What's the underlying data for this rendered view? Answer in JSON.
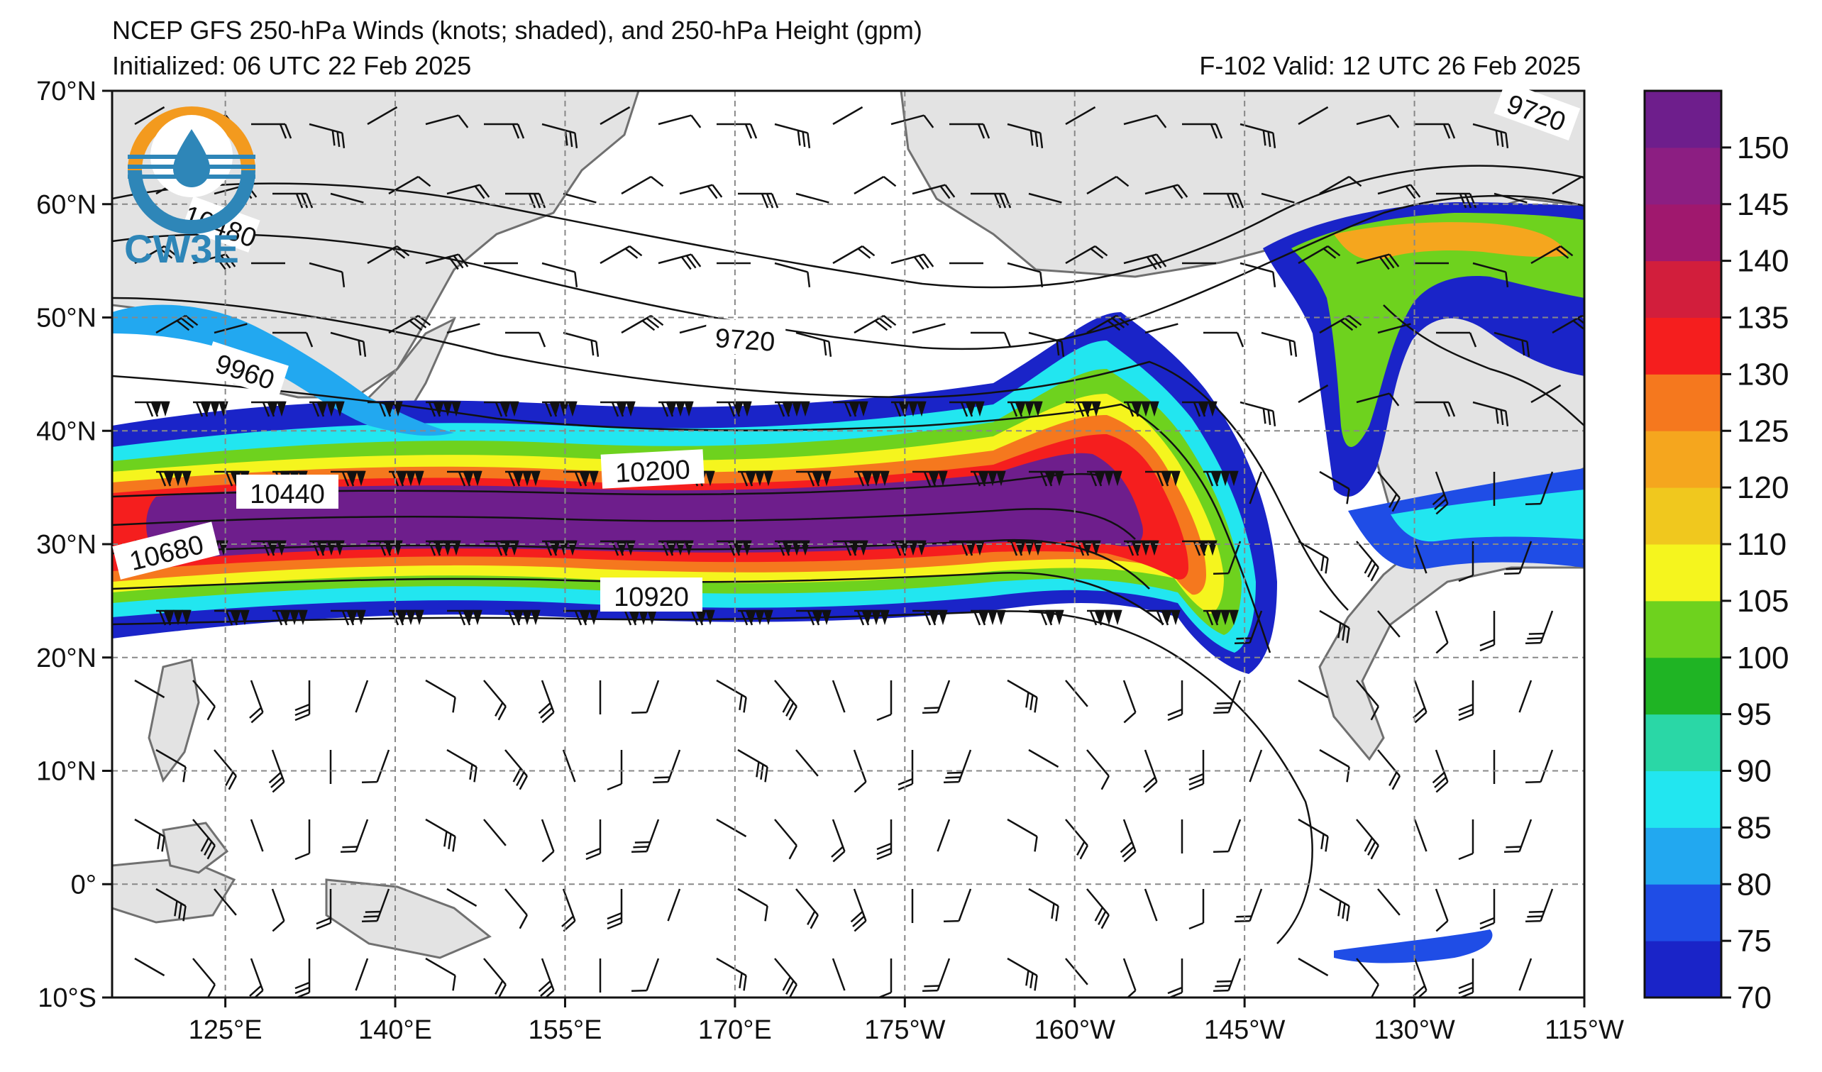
{
  "title": "NCEP GFS 250-hPa Winds (knots; shaded), and 250-hPa Height (gpm)",
  "initialized": "Initialized: 06 UTC 22 Feb 2025",
  "valid": "F-102  Valid: 12 UTC 26 Feb 2025",
  "logo_text": "CW3E",
  "map": {
    "lon_range": [
      115,
      245
    ],
    "lat_range": [
      -10,
      70
    ],
    "lon_ticks": [
      {
        "lon": 125,
        "label": "125°E"
      },
      {
        "lon": 140,
        "label": "140°E"
      },
      {
        "lon": 155,
        "label": "155°E"
      },
      {
        "lon": 170,
        "label": "170°E"
      },
      {
        "lon": 185,
        "label": "175°W"
      },
      {
        "lon": 200,
        "label": "160°W"
      },
      {
        "lon": 215,
        "label": "145°W"
      },
      {
        "lon": 230,
        "label": "130°W"
      },
      {
        "lon": 245,
        "label": "115°W"
      }
    ],
    "lat_ticks": [
      {
        "lat": 70,
        "label": "70°N"
      },
      {
        "lat": 60,
        "label": "60°N"
      },
      {
        "lat": 50,
        "label": "50°N"
      },
      {
        "lat": 40,
        "label": "40°N"
      },
      {
        "lat": 30,
        "label": "30°N"
      },
      {
        "lat": 20,
        "label": "20°N"
      },
      {
        "lat": 10,
        "label": "10°N"
      },
      {
        "lat": 0,
        "label": "0°"
      },
      {
        "lat": -10,
        "label": "10°S"
      }
    ],
    "grid": true,
    "height_contour_labels": [
      "9720",
      "9720",
      "10480",
      "9960",
      "10200",
      "10440",
      "10680",
      "10920"
    ]
  },
  "colorbar": {
    "levels": [
      70,
      75,
      80,
      85,
      90,
      95,
      100,
      105,
      110,
      120,
      125,
      130,
      135,
      140,
      145,
      150
    ],
    "labels": [
      "70",
      "75",
      "80",
      "85",
      "90",
      "95",
      "100",
      "105",
      "110",
      "120",
      "125",
      "130",
      "135",
      "140",
      "145",
      "150"
    ],
    "colors": [
      "#1a24c8",
      "#1f4de6",
      "#22a8f0",
      "#22e6f0",
      "#2ad7a6",
      "#1fb424",
      "#6ed21e",
      "#f5f51e",
      "#f0c81e",
      "#f5a61e",
      "#f5781e",
      "#f51e1e",
      "#d21e3c",
      "#a0186e",
      "#8c1e82",
      "#6e1e8c"
    ]
  }
}
